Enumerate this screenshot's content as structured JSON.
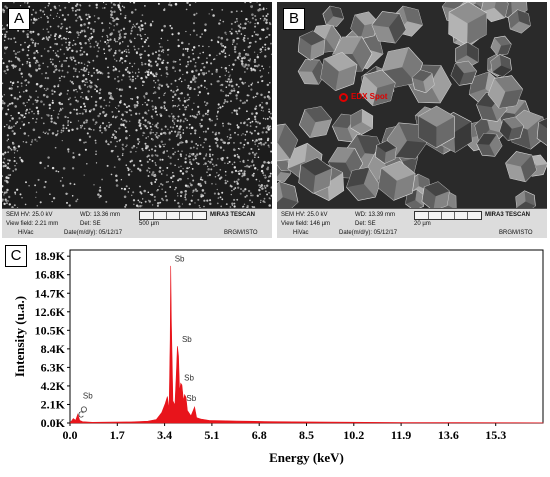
{
  "panel_a": {
    "letter": "A",
    "sem_hv": "SEM HV: 25.0 kV",
    "wd": "WD: 13.36 mm",
    "microscope": "MIRA3 TESCAN",
    "view_field": "View field: 2.21 mm",
    "det": "Det: SE",
    "scale_label": "500 µm",
    "vac": "HiVac",
    "date": "Date(m/d/y): 05/12/17",
    "lab": "BRGM/ISTO"
  },
  "panel_b": {
    "letter": "B",
    "sem_hv": "SEM HV: 25.0 kV",
    "wd": "WD: 13.39 mm",
    "microscope": "MIRA3 TESCAN",
    "view_field": "View field: 146 µm",
    "det": "Det: SE",
    "scale_label": "20 µm",
    "vac": "HiVac",
    "date": "Date(m/d/y): 05/12/17",
    "lab": "BRGM/ISTO",
    "marker_label": "EDX Spot",
    "marker_color": "#e00000"
  },
  "panel_c": {
    "letter": "C"
  },
  "chart_data": {
    "type": "area",
    "xlabel": "Energy (keV)",
    "ylabel": "Intensity (u.a.)",
    "xlim": [
      0,
      17.0
    ],
    "ylim": [
      0,
      19.6
    ],
    "x_ticks": [
      "0.0",
      "1.7",
      "3.4",
      "5.1",
      "6.8",
      "8.5",
      "10.2",
      "11.9",
      "13.6",
      "15.3"
    ],
    "x_tick_values": [
      0.0,
      1.7,
      3.4,
      5.1,
      6.8,
      8.5,
      10.2,
      11.9,
      13.6,
      15.3
    ],
    "y_ticks": [
      "0.0K",
      "2.1K",
      "4.2K",
      "6.3K",
      "8.4K",
      "10.5K",
      "12.6K",
      "14.7K",
      "16.8K",
      "18.9K"
    ],
    "y_tick_values": [
      0.0,
      2.1,
      4.2,
      6.3,
      8.4,
      10.5,
      12.6,
      14.7,
      16.8,
      18.9
    ],
    "series": [
      {
        "color": "#e8141b",
        "points": [
          [
            0.0,
            0.0
          ],
          [
            0.12,
            0.5
          ],
          [
            0.2,
            0.3
          ],
          [
            0.28,
            1.0
          ],
          [
            0.35,
            0.3
          ],
          [
            0.45,
            0.15
          ],
          [
            0.8,
            0.08
          ],
          [
            1.5,
            0.1
          ],
          [
            2.2,
            0.12
          ],
          [
            2.8,
            0.2
          ],
          [
            3.1,
            0.4
          ],
          [
            3.3,
            1.2
          ],
          [
            3.42,
            2.2
          ],
          [
            3.5,
            3.0
          ],
          [
            3.56,
            1.5
          ],
          [
            3.6,
            9.5
          ],
          [
            3.62,
            17.8
          ],
          [
            3.64,
            12.0
          ],
          [
            3.7,
            2.5
          ],
          [
            3.77,
            2.0
          ],
          [
            3.82,
            5.5
          ],
          [
            3.86,
            8.7
          ],
          [
            3.9,
            7.6
          ],
          [
            3.94,
            3.5
          ],
          [
            3.98,
            4.5
          ],
          [
            4.02,
            4.3
          ],
          [
            4.08,
            2.5
          ],
          [
            4.12,
            3.2
          ],
          [
            4.17,
            2.9
          ],
          [
            4.22,
            1.4
          ],
          [
            4.35,
            0.8
          ],
          [
            4.48,
            1.8
          ],
          [
            4.55,
            0.6
          ],
          [
            4.7,
            0.45
          ],
          [
            5.0,
            0.3
          ],
          [
            6.0,
            0.22
          ],
          [
            7.0,
            0.17
          ],
          [
            8.5,
            0.12
          ],
          [
            10.0,
            0.09
          ],
          [
            12.0,
            0.06
          ],
          [
            14.0,
            0.04
          ],
          [
            16.0,
            0.03
          ],
          [
            17.0,
            0.02
          ]
        ]
      }
    ],
    "annotations": [
      {
        "text": "Sb",
        "x": 3.62,
        "y": 18.3
      },
      {
        "text": "Sb",
        "x": 3.88,
        "y": 9.2
      },
      {
        "text": "Sb",
        "x": 3.96,
        "y": 4.8
      },
      {
        "text": "Sb",
        "x": 4.04,
        "y": 2.5
      },
      {
        "text": "Sb",
        "x": 0.32,
        "y": 2.8
      },
      {
        "text": "C",
        "x": 0.15,
        "y": 0.6
      },
      {
        "text": "O",
        "x": 0.5,
        "y": 1.2
      }
    ]
  }
}
